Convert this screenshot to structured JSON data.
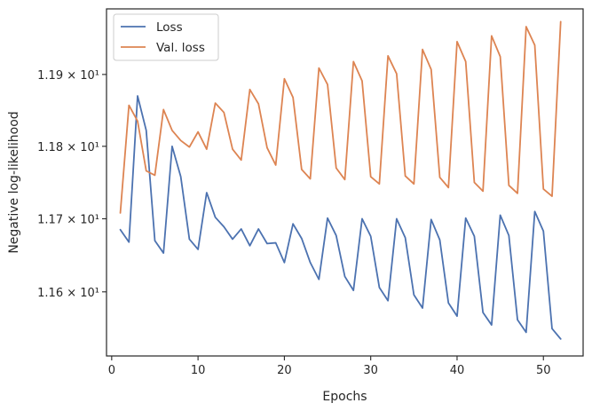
{
  "chart_data": {
    "type": "line",
    "title": "",
    "xlabel": "Epochs",
    "ylabel": "Negative log-likelihood",
    "yscale": "log",
    "xlim": [
      -0.6,
      54.6
    ],
    "ylim": [
      11.513,
      11.992
    ],
    "xticks": [
      0,
      10,
      20,
      30,
      40,
      50
    ],
    "xtick_labels": [
      "0",
      "10",
      "20",
      "30",
      "40",
      "50"
    ],
    "yticks": [
      11.6,
      11.7,
      11.8,
      11.9
    ],
    "ytick_labels": [
      "1.16 × 10¹",
      "1.17 × 10¹",
      "1.18 × 10¹",
      "1.19 × 10¹"
    ],
    "grid": false,
    "legend_position": "top-left",
    "x": [
      1,
      2,
      3,
      4,
      5,
      6,
      7,
      8,
      9,
      10,
      11,
      12,
      13,
      14,
      15,
      16,
      17,
      18,
      19,
      20,
      21,
      22,
      23,
      24,
      25,
      26,
      27,
      28,
      29,
      30,
      31,
      32,
      33,
      34,
      35,
      36,
      37,
      38,
      39,
      40,
      41,
      42,
      43,
      44,
      45,
      46,
      47,
      48,
      49,
      50,
      51,
      52
    ],
    "series": [
      {
        "name": "Loss",
        "color": "#4c72b0",
        "values": [
          11.685,
          11.668,
          11.87,
          11.822,
          11.67,
          11.653,
          11.8,
          11.758,
          11.672,
          11.658,
          11.736,
          11.702,
          11.689,
          11.672,
          11.686,
          11.663,
          11.686,
          11.666,
          11.667,
          11.64,
          11.693,
          11.673,
          11.64,
          11.617,
          11.701,
          11.677,
          11.621,
          11.602,
          11.7,
          11.676,
          11.606,
          11.588,
          11.7,
          11.674,
          11.596,
          11.578,
          11.699,
          11.671,
          11.585,
          11.567,
          11.701,
          11.676,
          11.572,
          11.555,
          11.705,
          11.677,
          11.562,
          11.545,
          11.71,
          11.683,
          11.55,
          11.536
        ]
      },
      {
        "name": "Val. loss",
        "color": "#dd8452",
        "values": [
          11.708,
          11.857,
          11.835,
          11.766,
          11.76,
          11.851,
          11.822,
          11.808,
          11.799,
          11.82,
          11.796,
          11.86,
          11.847,
          11.796,
          11.781,
          11.879,
          11.859,
          11.798,
          11.774,
          11.894,
          11.868,
          11.768,
          11.755,
          11.909,
          11.886,
          11.77,
          11.754,
          11.918,
          11.891,
          11.758,
          11.748,
          11.926,
          11.901,
          11.759,
          11.748,
          11.935,
          11.907,
          11.757,
          11.743,
          11.946,
          11.918,
          11.75,
          11.738,
          11.954,
          11.925,
          11.746,
          11.735,
          11.967,
          11.941,
          11.741,
          11.731,
          11.974
        ]
      }
    ]
  }
}
